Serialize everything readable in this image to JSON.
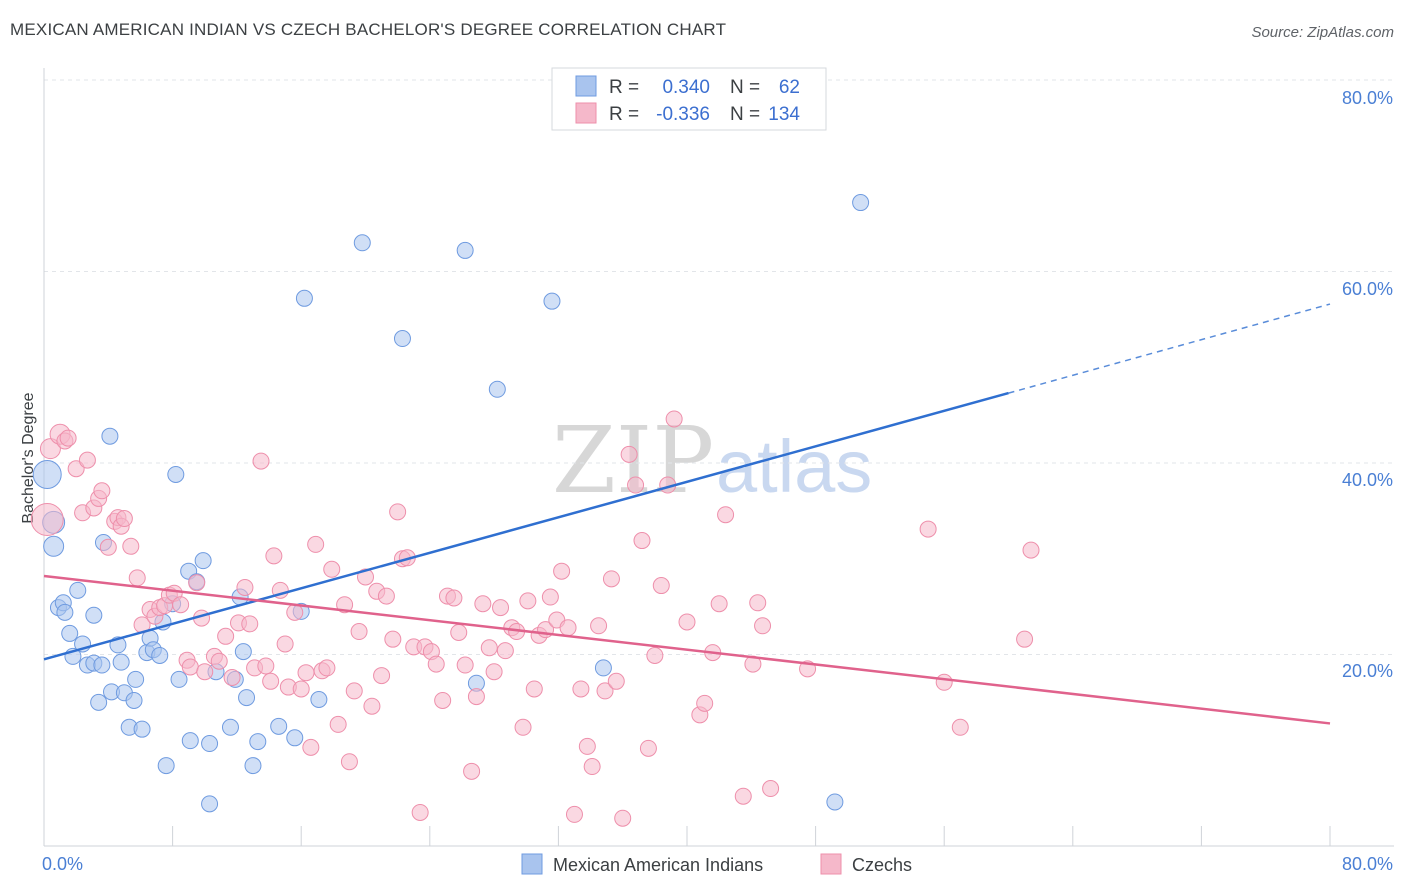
{
  "header": {
    "title": "MEXICAN AMERICAN INDIAN VS CZECH BACHELOR'S DEGREE CORRELATION CHART",
    "source": "Source: ZipAtlas.com"
  },
  "watermark": {
    "zip": "ZIP",
    "atlas": "atlas"
  },
  "legend": {
    "rows": [
      {
        "r_label": "R =",
        "r_value": "0.340",
        "n_label": "N =",
        "n_value": "62",
        "color": "#a9c4ee"
      },
      {
        "r_label": "R =",
        "r_value": "-0.336",
        "n_label": "N =",
        "n_value": "134",
        "color": "#f5b8ca"
      }
    ]
  },
  "bottom_legend": [
    {
      "label": "Mexican American Indians",
      "color": "#a9c4ee"
    },
    {
      "label": "Czechs",
      "color": "#f5b8ca"
    }
  ],
  "chart_data": {
    "type": "scatter",
    "ylabel": "Bachelor's Degree",
    "xlim": [
      0,
      80
    ],
    "ylim": [
      0,
      80
    ],
    "x_tick_labels": [
      "0.0%",
      "80.0%"
    ],
    "y_tick_labels": [
      "80.0%",
      "60.0%",
      "40.0%",
      "20.0%"
    ],
    "y_ticks": [
      80,
      60,
      40,
      20
    ],
    "grid": true,
    "series": [
      {
        "name": "Mexican American Indians",
        "color": "#6f9be0",
        "fill": "#a9c4ee",
        "trend": {
          "x0": 0,
          "y0": 19.5,
          "x1": 60,
          "y1": 47.3,
          "dash_to": 80,
          "dash_y": 56.6,
          "color": "#2f6fd0"
        },
        "points": [
          [
            0.2,
            38.8,
            14
          ],
          [
            0.6,
            33.8,
            11
          ],
          [
            0.6,
            31.3,
            10
          ],
          [
            0.9,
            24.9,
            8
          ],
          [
            1.2,
            25.4,
            8
          ],
          [
            1.3,
            24.4,
            8
          ],
          [
            1.6,
            22.2,
            8
          ],
          [
            1.8,
            19.8,
            8
          ],
          [
            2.1,
            26.7,
            8
          ],
          [
            2.4,
            21.1,
            8
          ],
          [
            2.7,
            18.9,
            8
          ],
          [
            3.1,
            24.1,
            8
          ],
          [
            3.1,
            19.1,
            8
          ],
          [
            3.4,
            15.0,
            8
          ],
          [
            3.6,
            18.9,
            8
          ],
          [
            3.7,
            31.7,
            8
          ],
          [
            4.1,
            42.8,
            8
          ],
          [
            4.2,
            16.1,
            8
          ],
          [
            4.6,
            21.0,
            8
          ],
          [
            4.8,
            19.2,
            8
          ],
          [
            5.0,
            16.0,
            8
          ],
          [
            5.3,
            12.4,
            8
          ],
          [
            5.6,
            15.2,
            8
          ],
          [
            5.7,
            17.4,
            8
          ],
          [
            6.1,
            12.2,
            8
          ],
          [
            6.4,
            20.2,
            8
          ],
          [
            6.6,
            21.7,
            8
          ],
          [
            6.8,
            20.5,
            8
          ],
          [
            7.2,
            19.9,
            8
          ],
          [
            7.4,
            23.4,
            8
          ],
          [
            7.6,
            8.4,
            8
          ],
          [
            8.0,
            25.3,
            8
          ],
          [
            8.2,
            38.8,
            8
          ],
          [
            8.4,
            17.4,
            8
          ],
          [
            9.0,
            28.7,
            8
          ],
          [
            9.1,
            11.0,
            8
          ],
          [
            9.5,
            27.6,
            8
          ],
          [
            9.9,
            29.8,
            8
          ],
          [
            10.3,
            10.7,
            8
          ],
          [
            10.3,
            4.4,
            8
          ],
          [
            10.7,
            18.2,
            8
          ],
          [
            11.6,
            12.4,
            8
          ],
          [
            11.9,
            17.4,
            8
          ],
          [
            12.2,
            26.0,
            8
          ],
          [
            12.4,
            20.3,
            8
          ],
          [
            12.6,
            15.5,
            8
          ],
          [
            13.0,
            8.4,
            8
          ],
          [
            13.3,
            10.9,
            8
          ],
          [
            14.6,
            12.5,
            8
          ],
          [
            15.6,
            11.3,
            8
          ],
          [
            16.0,
            24.5,
            8
          ],
          [
            16.2,
            57.2,
            8
          ],
          [
            17.1,
            15.3,
            8
          ],
          [
            19.8,
            63.0,
            8
          ],
          [
            22.3,
            53.0,
            8
          ],
          [
            26.2,
            62.2,
            8
          ],
          [
            26.9,
            17.0,
            8
          ],
          [
            28.2,
            47.7,
            8
          ],
          [
            31.6,
            56.9,
            8
          ],
          [
            34.8,
            18.6,
            8
          ],
          [
            49.2,
            4.6,
            8
          ],
          [
            50.8,
            67.2,
            8
          ]
        ]
      },
      {
        "name": "Czechs",
        "color": "#ee8fab",
        "fill": "#f5b8ca",
        "trend": {
          "x0": 0,
          "y0": 28.2,
          "x1": 80,
          "y1": 12.8,
          "color": "#e0628c"
        },
        "points": [
          [
            0.2,
            34.1,
            16
          ],
          [
            0.4,
            41.5,
            10
          ],
          [
            1.0,
            43.0,
            10
          ],
          [
            1.3,
            42.3,
            8
          ],
          [
            1.5,
            42.6,
            8
          ],
          [
            2.0,
            39.4,
            8
          ],
          [
            2.4,
            34.8,
            8
          ],
          [
            2.7,
            40.3,
            8
          ],
          [
            3.1,
            35.3,
            8
          ],
          [
            3.4,
            36.3,
            8
          ],
          [
            3.6,
            37.1,
            8
          ],
          [
            4.0,
            31.2,
            8
          ],
          [
            4.4,
            33.9,
            8
          ],
          [
            4.6,
            34.3,
            8
          ],
          [
            4.8,
            33.4,
            8
          ],
          [
            5.0,
            34.2,
            8
          ],
          [
            5.4,
            31.3,
            8
          ],
          [
            5.8,
            28.0,
            8
          ],
          [
            6.1,
            23.1,
            8
          ],
          [
            6.6,
            24.7,
            8
          ],
          [
            6.9,
            24.0,
            8
          ],
          [
            7.2,
            24.9,
            8
          ],
          [
            7.5,
            25.1,
            8
          ],
          [
            7.8,
            26.2,
            8
          ],
          [
            8.1,
            26.4,
            8
          ],
          [
            8.5,
            25.2,
            8
          ],
          [
            8.9,
            19.4,
            8
          ],
          [
            9.1,
            18.7,
            8
          ],
          [
            9.5,
            27.5,
            8
          ],
          [
            9.8,
            23.8,
            8
          ],
          [
            10.0,
            18.2,
            8
          ],
          [
            10.6,
            19.8,
            8
          ],
          [
            10.9,
            19.3,
            8
          ],
          [
            11.3,
            21.9,
            8
          ],
          [
            11.7,
            17.6,
            8
          ],
          [
            12.1,
            23.3,
            8
          ],
          [
            12.5,
            27.0,
            8
          ],
          [
            12.8,
            23.2,
            8
          ],
          [
            13.1,
            18.6,
            8
          ],
          [
            13.5,
            40.2,
            8
          ],
          [
            13.8,
            18.8,
            8
          ],
          [
            14.1,
            17.2,
            8
          ],
          [
            14.3,
            30.3,
            8
          ],
          [
            14.7,
            26.7,
            8
          ],
          [
            15.0,
            21.1,
            8
          ],
          [
            15.2,
            16.6,
            8
          ],
          [
            15.6,
            24.4,
            8
          ],
          [
            16.0,
            16.4,
            8
          ],
          [
            16.3,
            18.1,
            8
          ],
          [
            16.6,
            10.3,
            8
          ],
          [
            16.9,
            31.5,
            8
          ],
          [
            17.3,
            18.3,
            8
          ],
          [
            17.6,
            18.6,
            8
          ],
          [
            17.9,
            28.9,
            8
          ],
          [
            18.3,
            12.7,
            8
          ],
          [
            18.7,
            25.2,
            8
          ],
          [
            19.0,
            8.8,
            8
          ],
          [
            19.3,
            16.2,
            8
          ],
          [
            19.6,
            22.4,
            8
          ],
          [
            20.0,
            28.1,
            8
          ],
          [
            20.4,
            14.6,
            8
          ],
          [
            20.7,
            26.6,
            8
          ],
          [
            21.0,
            17.8,
            8
          ],
          [
            21.3,
            26.1,
            8
          ],
          [
            21.7,
            21.6,
            8
          ],
          [
            22.0,
            34.9,
            8
          ],
          [
            22.3,
            30.0,
            8
          ],
          [
            22.6,
            30.1,
            8
          ],
          [
            23.0,
            20.8,
            8
          ],
          [
            23.4,
            3.5,
            8
          ],
          [
            23.7,
            20.8,
            8
          ],
          [
            24.1,
            20.3,
            8
          ],
          [
            24.4,
            19.0,
            8
          ],
          [
            24.8,
            15.2,
            8
          ],
          [
            25.1,
            26.1,
            8
          ],
          [
            25.5,
            25.9,
            8
          ],
          [
            25.8,
            22.3,
            8
          ],
          [
            26.2,
            18.9,
            8
          ],
          [
            26.6,
            7.8,
            8
          ],
          [
            26.9,
            15.6,
            8
          ],
          [
            27.3,
            25.3,
            8
          ],
          [
            27.7,
            20.7,
            8
          ],
          [
            28.0,
            18.2,
            8
          ],
          [
            28.4,
            24.9,
            8
          ],
          [
            28.7,
            20.4,
            8
          ],
          [
            29.1,
            22.8,
            8
          ],
          [
            29.4,
            22.4,
            8
          ],
          [
            29.8,
            12.4,
            8
          ],
          [
            30.1,
            25.6,
            8
          ],
          [
            30.5,
            16.4,
            8
          ],
          [
            30.8,
            22.0,
            8
          ],
          [
            31.2,
            22.6,
            8
          ],
          [
            31.5,
            26.0,
            8
          ],
          [
            31.9,
            23.6,
            8
          ],
          [
            32.2,
            28.7,
            8
          ],
          [
            32.6,
            22.8,
            8
          ],
          [
            33.0,
            3.3,
            8
          ],
          [
            33.4,
            16.4,
            8
          ],
          [
            33.8,
            10.4,
            8
          ],
          [
            34.1,
            8.3,
            8
          ],
          [
            34.5,
            23.0,
            8
          ],
          [
            34.9,
            16.2,
            8
          ],
          [
            35.3,
            27.9,
            8
          ],
          [
            35.6,
            17.2,
            8
          ],
          [
            36.0,
            2.9,
            8
          ],
          [
            36.4,
            40.9,
            8
          ],
          [
            36.8,
            37.7,
            8
          ],
          [
            37.2,
            31.9,
            8
          ],
          [
            37.6,
            10.2,
            8
          ],
          [
            38.0,
            19.9,
            8
          ],
          [
            38.4,
            27.2,
            8
          ],
          [
            38.8,
            37.7,
            8
          ],
          [
            39.2,
            44.6,
            8
          ],
          [
            40.0,
            23.4,
            8
          ],
          [
            40.8,
            13.7,
            8
          ],
          [
            41.1,
            14.9,
            8
          ],
          [
            41.6,
            20.2,
            8
          ],
          [
            42.0,
            25.3,
            8
          ],
          [
            42.4,
            34.6,
            8
          ],
          [
            43.5,
            5.2,
            8
          ],
          [
            44.1,
            19.0,
            8
          ],
          [
            44.4,
            25.4,
            8
          ],
          [
            44.7,
            23.0,
            8
          ],
          [
            45.2,
            6.0,
            8
          ],
          [
            47.5,
            18.5,
            8
          ],
          [
            55.0,
            33.1,
            8
          ],
          [
            56.0,
            17.1,
            8
          ],
          [
            57.0,
            12.4,
            8
          ],
          [
            61.0,
            21.6,
            8
          ],
          [
            61.4,
            30.9,
            8
          ]
        ]
      }
    ]
  }
}
